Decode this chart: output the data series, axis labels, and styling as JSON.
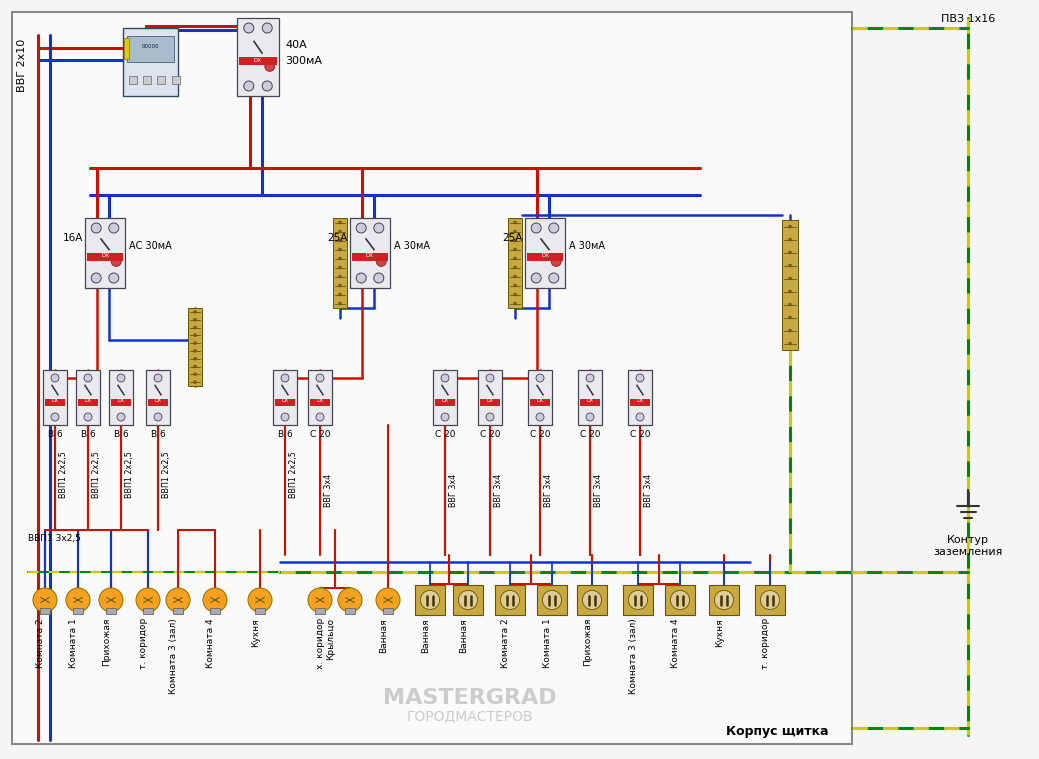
{
  "bg": "#f5f5f5",
  "inner_bg": "#ffffff",
  "border": "#888888",
  "red": "#cc1100",
  "blue": "#1133cc",
  "green": "#006600",
  "yellow": "#ddcc00",
  "yg1": "#008800",
  "yg2": "#cccc00",
  "dev_fc": "#e8e8ee",
  "dev_ec": "#555566",
  "term_fc": "#c8a840",
  "term_ec": "#665500",
  "light_fc": "#f5a020",
  "light_ec": "#997700",
  "sock_fc": "#c8a840",
  "sock_ec": "#665500",
  "lw_main": 2.2,
  "lw_sub": 1.8,
  "lw_fine": 1.5,
  "lw_yg": 2.2,
  "corpus_label": "Корпус щитка",
  "pvz_label": "ПВЗ 1х16",
  "ground_label": "Контур\nзаземления",
  "vvg_label": "ВВГ 2х10",
  "main_rcd_amp": "40А",
  "main_rcd_ma": "300мА",
  "rcd1_amp": "16А",
  "rcd1_type": "АС 30мА",
  "rcd2_amp": "25А",
  "rcd2_type": "А 30мА",
  "rcd3_amp": "25А",
  "rcd3_type": "А 30мА",
  "cb_b6": "В 6",
  "cb_c20": "С 20",
  "w_vvp1_2x25": "ВВП1 2х2,5",
  "w_vvp1_3x25": "ВВП1 3х2,5",
  "w_vvg_3x4": "ВВГ 3х4",
  "light_labels": [
    "Комната 2",
    "Комната 1",
    "Прихожая",
    "т. коридор",
    "Комната 3 (зал)",
    "Комната 4",
    "Кухня",
    "х. коридор\nКрыльцо"
  ],
  "bath_light_label": "Ванная",
  "sock_labels": [
    "Ванная",
    "Ванная",
    "Комната 2",
    "Комната 1",
    "Прихожая",
    "Комната 3 (зал)",
    "Комната 4",
    "Кухня",
    "т. коридор"
  ]
}
